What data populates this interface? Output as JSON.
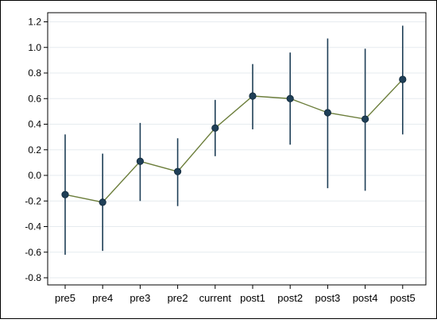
{
  "chart_data": {
    "type": "line",
    "title": "",
    "xlabel": "",
    "ylabel": "",
    "categories": [
      "pre5",
      "pre4",
      "pre3",
      "pre2",
      "current",
      "post1",
      "post2",
      "post3",
      "post4",
      "post5"
    ],
    "series": [
      {
        "values": [
          -0.15,
          -0.21,
          0.11,
          0.03,
          0.37,
          0.62,
          0.6,
          0.49,
          0.44,
          0.75
        ],
        "ci_lower": [
          -0.62,
          -0.59,
          -0.2,
          -0.24,
          0.15,
          0.36,
          0.24,
          -0.1,
          -0.12,
          0.32
        ],
        "ci_upper": [
          0.32,
          0.17,
          0.41,
          0.29,
          0.59,
          0.87,
          0.96,
          1.07,
          0.99,
          1.17
        ]
      }
    ],
    "yticks": [
      "-0.8",
      "-0.6",
      "-0.4",
      "-0.2",
      "0.0",
      "0.2",
      "0.4",
      "0.6",
      "0.8",
      "1.0",
      "1.2"
    ],
    "ylim": [
      -0.8,
      1.2
    ],
    "grid": true,
    "colors": {
      "line": "#6b7d3a",
      "point": "#1f3f57",
      "errorbar": "#1f3f57",
      "grid": "#e6ebef",
      "frame": "#000000"
    }
  }
}
